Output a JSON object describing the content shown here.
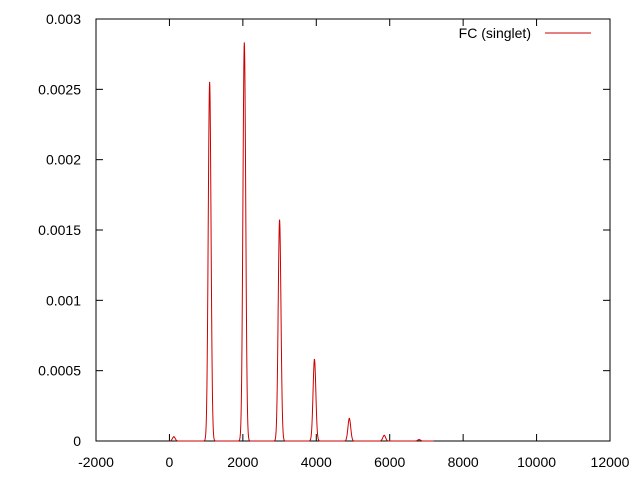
{
  "chart_data": {
    "type": "line",
    "title": "",
    "xlabel": "",
    "ylabel": "",
    "xlim": [
      -2000,
      12000
    ],
    "ylim": [
      0,
      0.003
    ],
    "x_ticks": [
      -2000,
      0,
      2000,
      4000,
      6000,
      8000,
      10000,
      12000
    ],
    "x_tick_labels": [
      "-2000",
      "0",
      "2000",
      "4000",
      "6000",
      "8000",
      "10000",
      "12000"
    ],
    "y_ticks": [
      0,
      0.0005,
      0.001,
      0.0015,
      0.002,
      0.0025,
      0.003
    ],
    "y_tick_labels": [
      "0",
      "0.0005",
      "0.001",
      "0.0015",
      "0.002",
      "0.0025",
      "0.003"
    ],
    "grid": false,
    "legend_position": "top-right",
    "series": [
      {
        "name": "FC (singlet)",
        "color": "#cc0000",
        "peaks": [
          {
            "x": 120,
            "height": 3e-05
          },
          {
            "x": 1095,
            "height": 0.00255
          },
          {
            "x": 2040,
            "height": 0.00283
          },
          {
            "x": 3000,
            "height": 0.00157
          },
          {
            "x": 3950,
            "height": 0.00058
          },
          {
            "x": 4900,
            "height": 0.00016
          },
          {
            "x": 5850,
            "height": 4e-05
          },
          {
            "x": 6800,
            "height": 1e-05
          }
        ]
      }
    ]
  }
}
